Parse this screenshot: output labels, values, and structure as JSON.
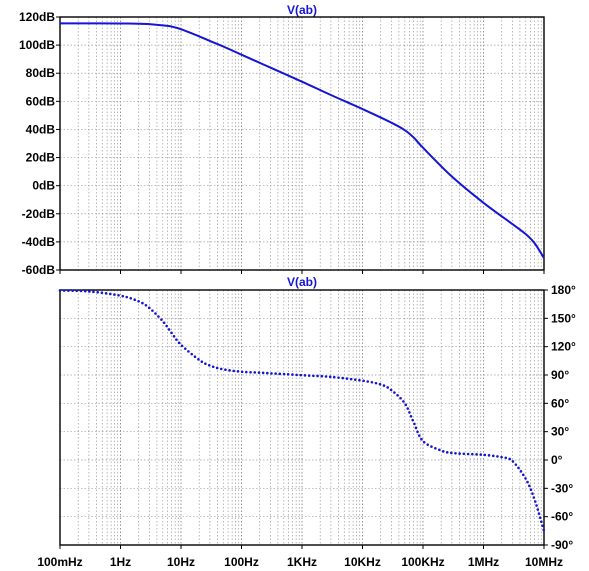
{
  "chart_data": [
    {
      "type": "line",
      "title": "V(ab)",
      "xscale": "log",
      "xlim": [
        0.1,
        10000000
      ],
      "x_ticks": [
        {
          "value": 0.1,
          "label": "100mHz"
        },
        {
          "value": 1,
          "label": "1Hz"
        },
        {
          "value": 10,
          "label": "10Hz"
        },
        {
          "value": 100,
          "label": "100Hz"
        },
        {
          "value": 1000,
          "label": "1KHz"
        },
        {
          "value": 10000,
          "label": "10KHz"
        },
        {
          "value": 100000,
          "label": "100KHz"
        },
        {
          "value": 1000000,
          "label": "1MHz"
        },
        {
          "value": 10000000,
          "label": "10MHz"
        }
      ],
      "ylim": [
        -60,
        120
      ],
      "y_ticks": [
        {
          "value": 120,
          "label": "120dB"
        },
        {
          "value": 100,
          "label": "100dB"
        },
        {
          "value": 80,
          "label": "80dB"
        },
        {
          "value": 60,
          "label": "60dB"
        },
        {
          "value": 40,
          "label": "40dB"
        },
        {
          "value": 20,
          "label": "20dB"
        },
        {
          "value": 0,
          "label": "0dB"
        },
        {
          "value": -20,
          "label": "-20dB"
        },
        {
          "value": -40,
          "label": "-40dB"
        },
        {
          "value": -60,
          "label": "-60dB"
        }
      ],
      "axis_side": "left",
      "grid": true,
      "series": [
        {
          "style": "solid",
          "color": "#1515d6",
          "x": [
            0.1,
            0.3,
            1,
            2,
            3,
            5,
            7,
            10,
            20,
            30,
            50,
            100,
            300,
            1000,
            3000,
            10000,
            30000,
            50000,
            70000,
            100000,
            300000,
            1000000,
            3000000,
            5000000,
            7000000,
            10000000
          ],
          "y": [
            115.5,
            115.5,
            115.4,
            115.2,
            114.9,
            114.0,
            113.2,
            111.3,
            106.2,
            103.0,
            99.0,
            93.2,
            84.0,
            74.0,
            64.5,
            54.5,
            44.8,
            39.5,
            34.3,
            27.0,
            6.5,
            -12.2,
            -27.3,
            -34.5,
            -41.0,
            -51.5
          ]
        }
      ]
    },
    {
      "type": "line",
      "title": "V(ab)",
      "xscale": "log",
      "xlim": [
        0.1,
        10000000
      ],
      "x_ticks": [
        {
          "value": 0.1,
          "label": "100mHz"
        },
        {
          "value": 1,
          "label": "1Hz"
        },
        {
          "value": 10,
          "label": "10Hz"
        },
        {
          "value": 100,
          "label": "100Hz"
        },
        {
          "value": 1000,
          "label": "1KHz"
        },
        {
          "value": 10000,
          "label": "10KHz"
        },
        {
          "value": 100000,
          "label": "100KHz"
        },
        {
          "value": 1000000,
          "label": "1MHz"
        },
        {
          "value": 10000000,
          "label": "10MHz"
        }
      ],
      "ylim": [
        -90,
        180
      ],
      "y_ticks": [
        {
          "value": 180,
          "label": "180°"
        },
        {
          "value": 150,
          "label": "150°"
        },
        {
          "value": 120,
          "label": "120°"
        },
        {
          "value": 90,
          "label": "90°"
        },
        {
          "value": 60,
          "label": "60°"
        },
        {
          "value": 30,
          "label": "30°"
        },
        {
          "value": 0,
          "label": "0°"
        },
        {
          "value": -30,
          "label": "-30°"
        },
        {
          "value": -60,
          "label": "-60°"
        },
        {
          "value": -90,
          "label": "-90°"
        }
      ],
      "axis_side": "right",
      "grid": true,
      "series": [
        {
          "style": "dotted",
          "color": "#1515d6",
          "x": [
            0.1,
            0.3,
            1,
            2,
            3,
            5,
            7,
            10,
            20,
            30,
            50,
            100,
            200,
            300,
            500,
            1000,
            3000,
            10000,
            20000,
            30000,
            50000,
            70000,
            100000,
            200000,
            300000,
            500000,
            1000000,
            2000000,
            3000000,
            5000000,
            7000000,
            10000000
          ],
          "y": [
            179.5,
            178.5,
            174.0,
            168.0,
            161.0,
            147.0,
            134.5,
            122.0,
            106.0,
            100.0,
            96.0,
            93.5,
            92.5,
            91.8,
            91.0,
            89.8,
            88.0,
            84.0,
            80.0,
            74.0,
            60.0,
            40.0,
            20.0,
            10.0,
            7.5,
            6.5,
            5.5,
            3.0,
            -1.0,
            -20.0,
            -42.0,
            -75.0
          ]
        }
      ]
    }
  ]
}
